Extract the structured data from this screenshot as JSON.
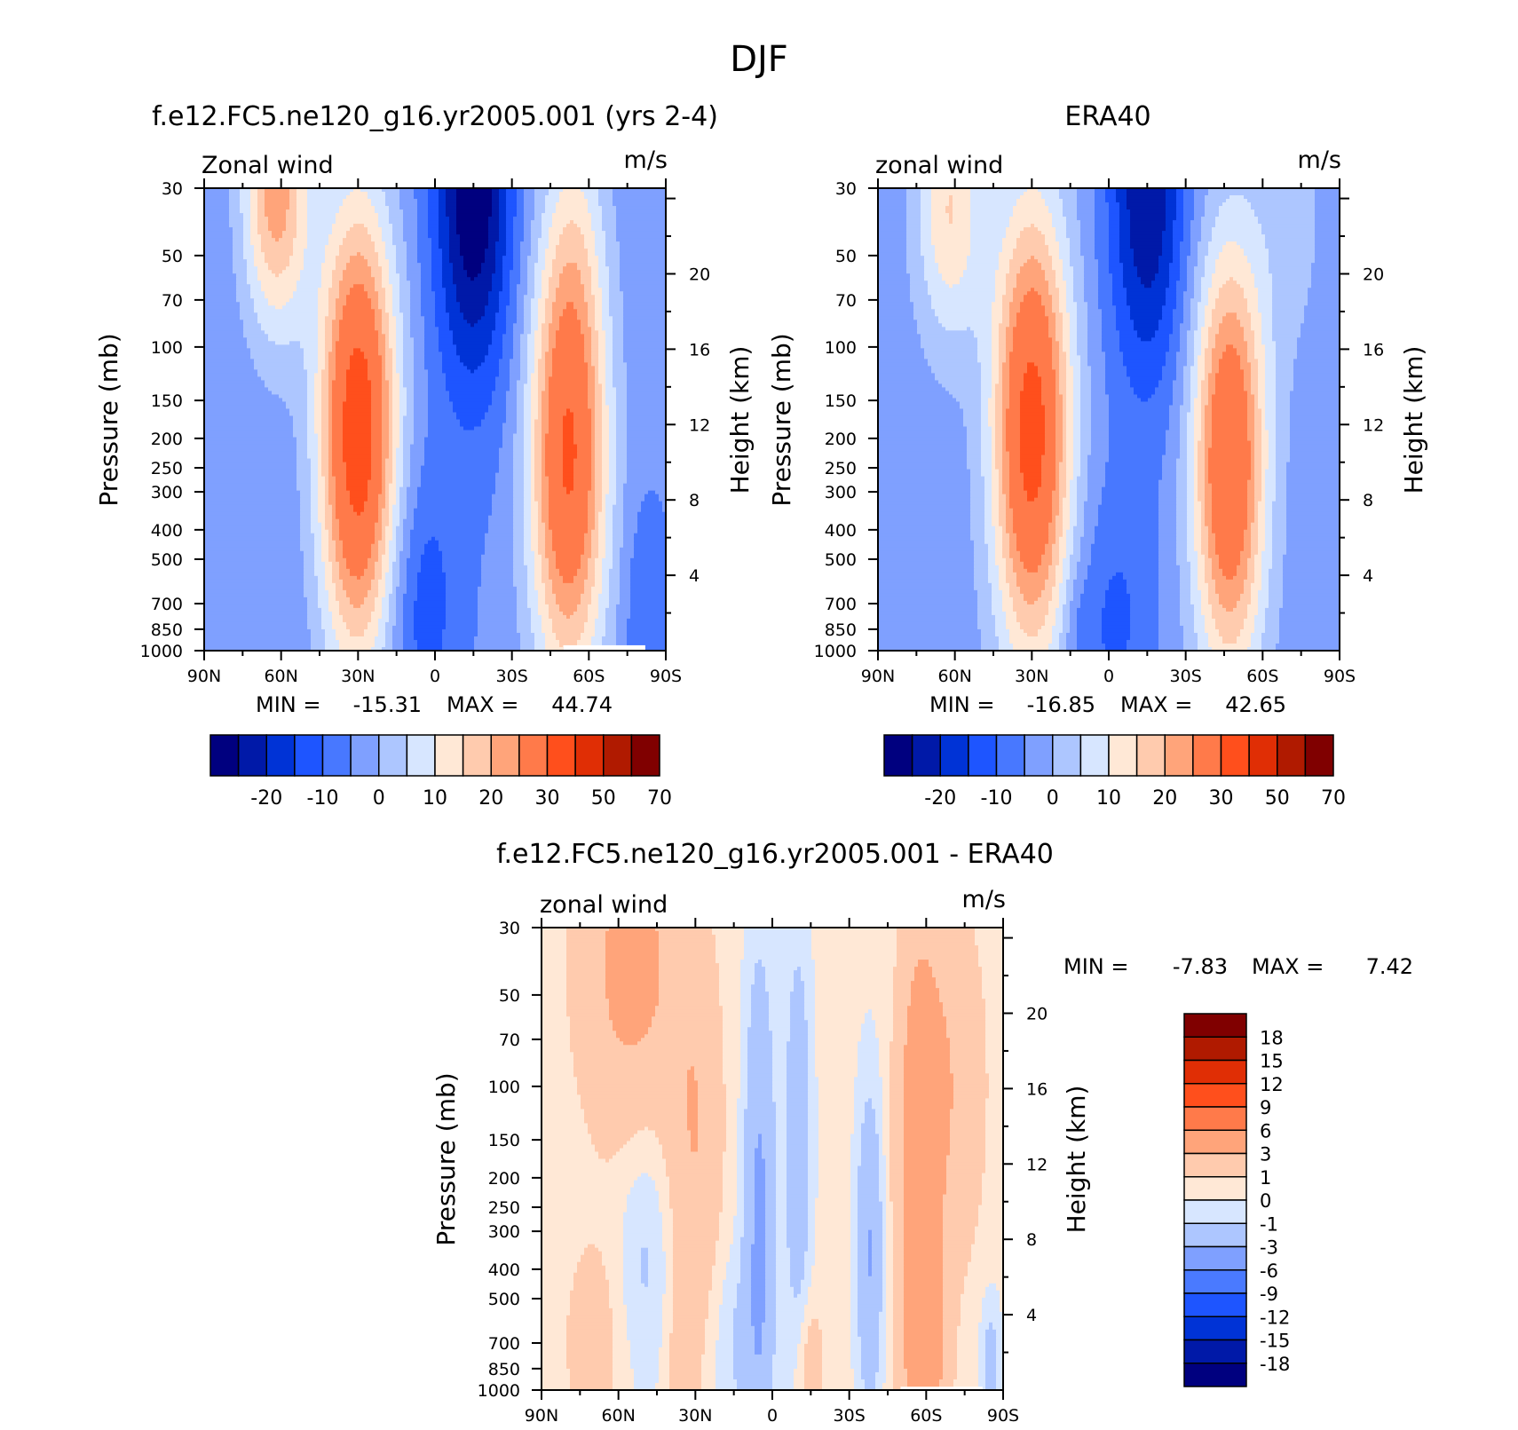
{
  "page": {
    "title": "DJF"
  },
  "palettes": {
    "main": [
      "#00007f",
      "#0019a8",
      "#0033d6",
      "#1e55ff",
      "#4878ff",
      "#7fa0ff",
      "#adc6ff",
      "#d7e6ff",
      "#ffe8d6",
      "#ffcbae",
      "#ffa47a",
      "#ff7a4a",
      "#ff4f1c",
      "#e02e05",
      "#b01a00",
      "#800000"
    ],
    "diff": [
      "#00007f",
      "#0019a8",
      "#0033d6",
      "#1e55ff",
      "#4a7aff",
      "#7fa0ff",
      "#adc6ff",
      "#d7e6ff",
      "#ffe8d6",
      "#ffcbae",
      "#ffa47a",
      "#ff7a4a",
      "#ff4f1c",
      "#e02e05",
      "#b01a00",
      "#800000"
    ]
  },
  "chart_data": [
    {
      "id": "model",
      "type": "contour",
      "title": "f.e12.FC5.ne120_g16.yr2005.001 (yrs 2-4)",
      "left_label": "Zonal wind",
      "right_label": "m/s",
      "xlabel": "",
      "ylabel": "Pressure (mb)",
      "y2label": "Height (km)",
      "x_ticks": [
        "90N",
        "60N",
        "30N",
        "0",
        "30S",
        "60S",
        "90S"
      ],
      "x_tick_values": [
        90,
        60,
        30,
        0,
        -30,
        -60,
        -90
      ],
      "y_ticks": [
        "30",
        "50",
        "70",
        "100",
        "150",
        "200",
        "250",
        "300",
        "400",
        "500",
        "700",
        "850",
        "1000"
      ],
      "y_tick_values": [
        30,
        50,
        70,
        100,
        150,
        200,
        250,
        300,
        400,
        500,
        700,
        850,
        1000
      ],
      "ylim": [
        1000,
        30
      ],
      "height_ticks": [
        "4",
        "8",
        "12",
        "16",
        "20"
      ],
      "height_tick_values": [
        4,
        8,
        12,
        16,
        20
      ],
      "min_label": "MIN =",
      "min_value": "-15.31",
      "max_label": "MAX =",
      "max_value": "44.74",
      "levels": [
        -25,
        -20,
        -15,
        -10,
        -5,
        0,
        5,
        10,
        15,
        20,
        25,
        30,
        40,
        50,
        60,
        70
      ],
      "colorbar_ticks": [
        "-20",
        "-10",
        "0",
        "10",
        "20",
        "30",
        "50",
        "70"
      ],
      "features": [
        {
          "lat": 30,
          "p": 190,
          "amp": 45,
          "wlat": 15,
          "wz": 1.7
        },
        {
          "lat": -52,
          "p": 230,
          "amp": 40,
          "wlat": 15,
          "wz": 1.7
        },
        {
          "lat": 62,
          "p": 30,
          "amp": 27,
          "wlat": 13,
          "wz": 1.1
        },
        {
          "lat": -15,
          "p": 30,
          "amp": -26,
          "wlat": 15,
          "wz": 1.5
        },
        {
          "lat": 5,
          "p": 700,
          "amp": -9,
          "wlat": 14,
          "wz": 1.0
        },
        {
          "lat": -82,
          "p": 750,
          "amp": -6,
          "wlat": 8,
          "wz": 0.8
        },
        {
          "lat": -55,
          "p": 40,
          "amp": 6,
          "wlat": 12,
          "wz": 1.0
        }
      ],
      "baseline": 1,
      "missing": {
        "lat_from": -50,
        "lat_to": -82,
        "p_from": 960,
        "p_to": 1000
      }
    },
    {
      "id": "obs",
      "type": "contour",
      "title": "ERA40",
      "left_label": "zonal wind",
      "right_label": "m/s",
      "xlabel": "",
      "ylabel": "Pressure (mb)",
      "y2label": "Height (km)",
      "x_ticks": [
        "90N",
        "60N",
        "30N",
        "0",
        "30S",
        "60S",
        "90S"
      ],
      "x_tick_values": [
        90,
        60,
        30,
        0,
        -30,
        -60,
        -90
      ],
      "y_ticks": [
        "30",
        "50",
        "70",
        "100",
        "150",
        "200",
        "250",
        "300",
        "400",
        "500",
        "700",
        "850",
        "1000"
      ],
      "y_tick_values": [
        30,
        50,
        70,
        100,
        150,
        200,
        250,
        300,
        400,
        500,
        700,
        850,
        1000
      ],
      "ylim": [
        1000,
        30
      ],
      "height_ticks": [
        "4",
        "8",
        "12",
        "16",
        "20"
      ],
      "height_tick_values": [
        4,
        8,
        12,
        16,
        20
      ],
      "min_label": "MIN =",
      "min_value": "-16.85",
      "max_label": "MAX =",
      "max_value": "42.65",
      "levels": [
        -25,
        -20,
        -15,
        -10,
        -5,
        0,
        5,
        10,
        15,
        20,
        25,
        30,
        40,
        50,
        60,
        70
      ],
      "colorbar_ticks": [
        "-20",
        "-10",
        "0",
        "10",
        "20",
        "30",
        "50",
        "70"
      ],
      "features": [
        {
          "lat": 30,
          "p": 190,
          "amp": 42,
          "wlat": 15,
          "wz": 1.7
        },
        {
          "lat": -47,
          "p": 240,
          "amp": 38,
          "wlat": 14,
          "wz": 1.6
        },
        {
          "lat": 62,
          "p": 35,
          "amp": 18,
          "wlat": 13,
          "wz": 1.0
        },
        {
          "lat": -15,
          "p": 30,
          "amp": -22,
          "wlat": 15,
          "wz": 1.5
        },
        {
          "lat": -2,
          "p": 800,
          "amp": -8,
          "wlat": 16,
          "wz": 1.0
        },
        {
          "lat": 12,
          "p": 850,
          "amp": -4,
          "wlat": 6,
          "wz": 0.4
        },
        {
          "lat": -70,
          "p": 35,
          "amp": 5,
          "wlat": 15,
          "wz": 1.2
        }
      ],
      "baseline": 2
    },
    {
      "id": "diff",
      "type": "contour",
      "title": "f.e12.FC5.ne120_g16.yr2005.001 - ERA40",
      "left_label": "zonal wind",
      "right_label": "m/s",
      "xlabel": "",
      "ylabel": "Pressure (mb)",
      "y2label": "Height (km)",
      "x_ticks": [
        "90N",
        "60N",
        "30N",
        "0",
        "30S",
        "60S",
        "90S"
      ],
      "x_tick_values": [
        90,
        60,
        30,
        0,
        -30,
        -60,
        -90
      ],
      "y_ticks": [
        "30",
        "50",
        "70",
        "100",
        "150",
        "200",
        "250",
        "300",
        "400",
        "500",
        "700",
        "850",
        "1000"
      ],
      "y_tick_values": [
        30,
        50,
        70,
        100,
        150,
        200,
        250,
        300,
        400,
        500,
        700,
        850,
        1000
      ],
      "ylim": [
        1000,
        30
      ],
      "height_ticks": [
        "4",
        "8",
        "12",
        "16",
        "20"
      ],
      "height_tick_values": [
        4,
        8,
        12,
        16,
        20
      ],
      "min_label": "MIN =",
      "min_value": "-7.83",
      "max_label": "MAX =",
      "max_value": "7.42",
      "levels": [
        -21,
        -18,
        -15,
        -12,
        -9,
        -6,
        -3,
        -1,
        0,
        1,
        3,
        6,
        9,
        12,
        15,
        18
      ],
      "colorbar_ticks": [
        "18",
        "15",
        "12",
        "9",
        "6",
        "3",
        "1",
        "0",
        "-1",
        "-3",
        "-6",
        "-9",
        "-12",
        "-15",
        "-18"
      ],
      "features": [
        {
          "lat": 55,
          "p": 40,
          "amp": 3.5,
          "wlat": 20,
          "wz": 1.3
        },
        {
          "lat": 30,
          "p": 150,
          "amp": 2.5,
          "wlat": 10,
          "wz": 1.4
        },
        {
          "lat": -57,
          "p": 200,
          "amp": 4.2,
          "wlat": 8,
          "wz": 1.8
        },
        {
          "lat": -68,
          "p": 100,
          "amp": 2.5,
          "wlat": 14,
          "wz": 1.4
        },
        {
          "lat": 5,
          "p": 300,
          "amp": -3.8,
          "wlat": 6,
          "wz": 2.0
        },
        {
          "lat": -38,
          "p": 350,
          "amp": -3.4,
          "wlat": 5,
          "wz": 1.2
        },
        {
          "lat": -10,
          "p": 150,
          "amp": -2.8,
          "wlat": 5,
          "wz": 1.5
        },
        {
          "lat": 50,
          "p": 350,
          "amp": -1.6,
          "wlat": 10,
          "wz": 1.0
        },
        {
          "lat": -60,
          "p": 850,
          "amp": 3.2,
          "wlat": 8,
          "wz": 0.8
        },
        {
          "lat": 70,
          "p": 700,
          "amp": 1.4,
          "wlat": 12,
          "wz": 0.8
        },
        {
          "lat": 35,
          "p": 850,
          "amp": 1.5,
          "wlat": 6,
          "wz": 0.6
        },
        {
          "lat": -15,
          "p": 850,
          "amp": 1.8,
          "wlat": 5,
          "wz": 0.5
        },
        {
          "lat": -85,
          "p": 800,
          "amp": -2.0,
          "wlat": 4,
          "wz": 0.5
        },
        {
          "lat": 15,
          "p": 700,
          "amp": -1.3,
          "wlat": 8,
          "wz": 0.7
        }
      ],
      "baseline": 0.3,
      "missing": {
        "lat_from": -50,
        "lat_to": -82,
        "p_from": 975,
        "p_to": 1000
      }
    }
  ]
}
